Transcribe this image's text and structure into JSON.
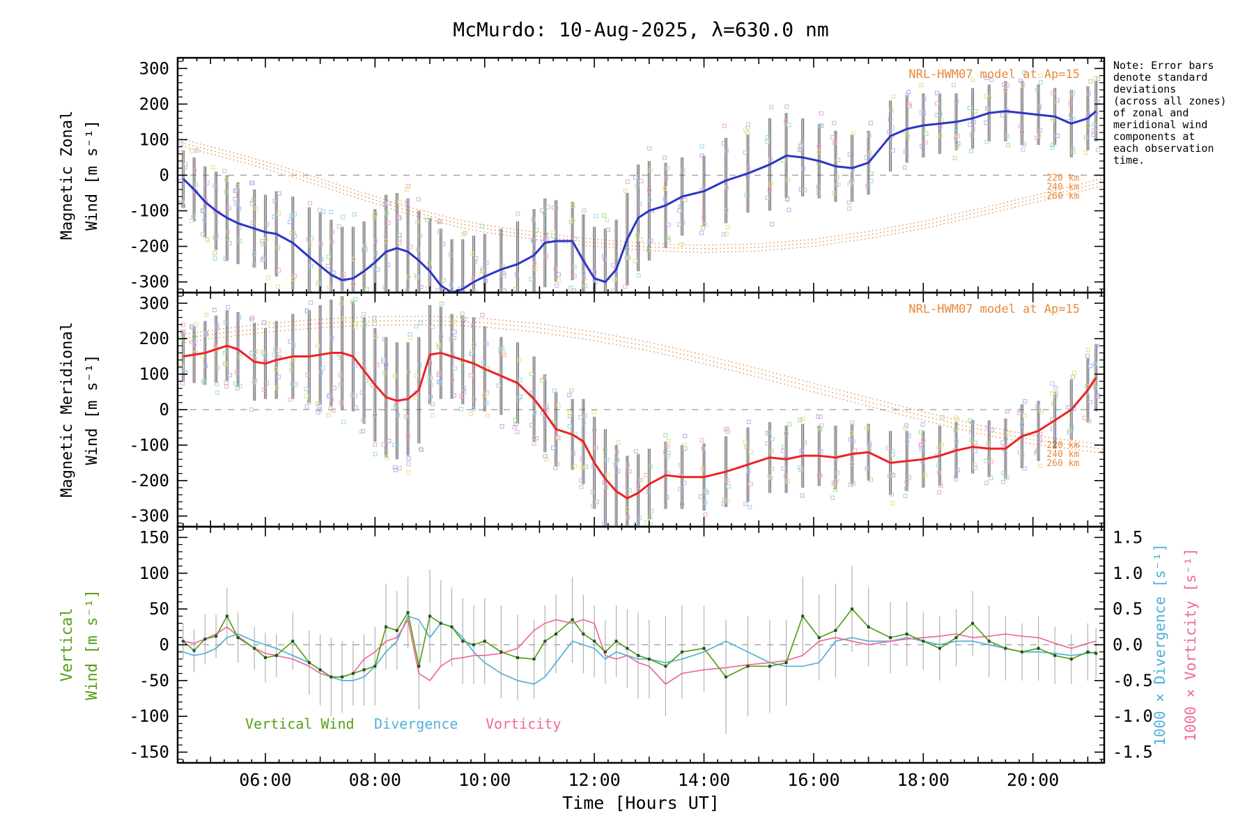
{
  "title": "McMurdo: 10-Aug-2025, λ=630.0 nm",
  "note": {
    "lines": [
      "Note: Error bars",
      "denote standard",
      "deviations",
      "(across all zones)",
      "of zonal and",
      "meridional wind",
      "components at",
      "each observation",
      "time."
    ]
  },
  "model_annotation": "NRL-HWM07 model at Ap=15",
  "altitude_labels": [
    "220 km",
    "240 km",
    "260 km"
  ],
  "legend": {
    "vertical_wind": "Vertical Wind",
    "divergence": "Divergence",
    "vorticity": "Vorticity"
  },
  "axes": {
    "x_label": "Time [Hours UT]",
    "x_tick_labels": [
      "06:00",
      "08:00",
      "10:00",
      "12:00",
      "14:00",
      "16:00",
      "18:00",
      "20:00"
    ],
    "x_tick_hours": [
      6,
      8,
      10,
      12,
      14,
      16,
      18,
      20
    ],
    "x_range_hours": [
      4.4,
      21.3
    ],
    "panel1_ylabel_line1": "Magnetic Zonal",
    "panel1_ylabel_line2": "Wind [m s⁻¹]",
    "panel2_ylabel_line1": "Magnetic Meridional",
    "panel2_ylabel_line2": "Wind [m s⁻¹]",
    "panel3_ylabel_line1": "Vertical",
    "panel3_ylabel_line2": "Wind [m s⁻¹]",
    "right_label_divergence": "1000 × Divergence [s⁻¹]",
    "right_label_vorticity": "1000 × Vorticity [s⁻¹]",
    "panel12_yticks": [
      -300,
      -200,
      -100,
      0,
      100,
      200,
      300
    ],
    "panel3_left_yticks": [
      -150,
      -100,
      -50,
      0,
      50,
      100,
      150
    ],
    "panel3_right_yticks": [
      -1.5,
      -1.0,
      -0.5,
      0.0,
      0.5,
      1.0,
      1.5
    ],
    "panel12_ylim": [
      -330,
      330
    ],
    "panel3_left_ylim": [
      -165,
      165
    ],
    "panel3_right_ylim": [
      -1.65,
      1.65
    ]
  },
  "colors": {
    "zonal_line": "#2a35c8",
    "meridional_line": "#ee2222",
    "model": "#e8883a",
    "vertical_wind": "#55a013",
    "divergence": "#52b0d8",
    "vorticity": "#f0699a",
    "zero_line": "#999999",
    "error_bar_gray": "#b0b0b0",
    "scatter_palette": [
      "#aab0e8",
      "#f2a8c4",
      "#e6de8a",
      "#9cd6e6",
      "#a8d898",
      "#c8b0e0"
    ]
  },
  "chart_data": [
    {
      "type": "line",
      "title": "Magnetic Zonal Wind",
      "ylabel": "Magnetic Zonal Wind [m s⁻¹]",
      "ylim": [
        -300,
        300
      ],
      "xlim_hours": [
        4.4,
        21.3
      ],
      "x_hours": [
        4.5,
        4.7,
        4.9,
        5.1,
        5.3,
        5.5,
        5.8,
        6.0,
        6.2,
        6.5,
        6.8,
        7.0,
        7.2,
        7.4,
        7.6,
        7.8,
        8.0,
        8.2,
        8.4,
        8.6,
        8.8,
        9.0,
        9.2,
        9.4,
        9.6,
        9.8,
        10.0,
        10.3,
        10.6,
        10.9,
        11.1,
        11.3,
        11.6,
        11.8,
        12.0,
        12.2,
        12.4,
        12.6,
        12.8,
        13.0,
        13.3,
        13.6,
        14.0,
        14.4,
        14.8,
        15.2,
        15.5,
        15.8,
        16.1,
        16.4,
        16.7,
        17.0,
        17.4,
        17.7,
        18.0,
        18.3,
        18.6,
        18.9,
        19.2,
        19.5,
        19.8,
        20.1,
        20.4,
        20.7,
        21.0,
        21.15
      ],
      "series": [
        {
          "name": "Observed zonal wind",
          "color_key": "zonal_line",
          "values": [
            -10,
            -40,
            -75,
            -100,
            -120,
            -135,
            -150,
            -160,
            -165,
            -190,
            -230,
            -255,
            -280,
            -295,
            -290,
            -270,
            -245,
            -215,
            -205,
            -215,
            -240,
            -270,
            -310,
            -330,
            -320,
            -300,
            -285,
            -265,
            -250,
            -225,
            -190,
            -185,
            -185,
            -240,
            -290,
            -300,
            -265,
            -180,
            -120,
            -100,
            -85,
            -60,
            -45,
            -15,
            5,
            30,
            55,
            50,
            40,
            25,
            20,
            35,
            110,
            130,
            140,
            145,
            150,
            160,
            175,
            180,
            175,
            170,
            165,
            145,
            160,
            180
          ],
          "stddev": [
            80,
            90,
            100,
            110,
            120,
            115,
            110,
            105,
            120,
            130,
            140,
            150,
            155,
            150,
            145,
            140,
            150,
            160,
            155,
            150,
            140,
            150,
            160,
            150,
            140,
            130,
            120,
            115,
            120,
            130,
            125,
            115,
            110,
            130,
            145,
            150,
            140,
            130,
            150,
            140,
            120,
            110,
            100,
            120,
            110,
            130,
            120,
            110,
            105,
            100,
            95,
            90,
            100,
            95,
            90,
            85,
            80,
            85,
            80,
            85,
            90,
            85,
            80,
            95,
            90,
            85
          ]
        },
        {
          "name": "NRL-HWM07 model at Ap=15",
          "color_key": "model",
          "altitudes_km": [
            220,
            240,
            260
          ],
          "altitude_offsets": [
            10,
            0,
            -10
          ],
          "x": [
            4.4,
            5,
            5.5,
            6,
            6.5,
            7,
            7.5,
            8,
            8.5,
            9,
            9.5,
            10,
            11,
            12,
            13,
            14,
            15,
            16,
            17,
            18,
            19,
            20,
            21,
            21.3
          ],
          "values": [
            95,
            70,
            50,
            28,
            5,
            -20,
            -45,
            -70,
            -95,
            -115,
            -135,
            -150,
            -172,
            -190,
            -202,
            -207,
            -203,
            -190,
            -168,
            -140,
            -105,
            -68,
            -30,
            -18
          ]
        }
      ]
    },
    {
      "type": "line",
      "title": "Magnetic Meridional Wind",
      "ylabel": "Magnetic Meridional Wind [m s⁻¹]",
      "ylim": [
        -300,
        300
      ],
      "xlim_hours": [
        4.4,
        21.3
      ],
      "x_hours": [
        4.5,
        4.7,
        4.9,
        5.1,
        5.3,
        5.5,
        5.8,
        6.0,
        6.2,
        6.5,
        6.8,
        7.0,
        7.2,
        7.4,
        7.6,
        7.8,
        8.0,
        8.2,
        8.4,
        8.6,
        8.8,
        9.0,
        9.2,
        9.4,
        9.6,
        9.8,
        10.0,
        10.3,
        10.6,
        10.9,
        11.1,
        11.3,
        11.6,
        11.8,
        12.0,
        12.2,
        12.4,
        12.6,
        12.8,
        13.0,
        13.3,
        13.6,
        14.0,
        14.4,
        14.8,
        15.2,
        15.5,
        15.8,
        16.1,
        16.4,
        16.7,
        17.0,
        17.4,
        17.7,
        18.0,
        18.3,
        18.6,
        18.9,
        19.2,
        19.5,
        19.8,
        20.1,
        20.4,
        20.7,
        21.0,
        21.15
      ],
      "series": [
        {
          "name": "Observed meridional wind",
          "color_key": "meridional_line",
          "values": [
            150,
            155,
            160,
            170,
            180,
            170,
            135,
            130,
            140,
            150,
            150,
            155,
            160,
            160,
            150,
            110,
            70,
            35,
            25,
            30,
            55,
            155,
            160,
            150,
            140,
            130,
            115,
            95,
            75,
            30,
            -10,
            -55,
            -70,
            -90,
            -150,
            -195,
            -230,
            -250,
            -235,
            -210,
            -185,
            -190,
            -190,
            -175,
            -155,
            -135,
            -140,
            -130,
            -130,
            -135,
            -125,
            -120,
            -150,
            -145,
            -140,
            -130,
            -115,
            -105,
            -110,
            -110,
            -75,
            -60,
            -30,
            0,
            55,
            90
          ],
          "stddev": [
            70,
            80,
            90,
            95,
            100,
            105,
            110,
            100,
            110,
            120,
            130,
            140,
            150,
            160,
            155,
            150,
            160,
            170,
            165,
            160,
            150,
            140,
            130,
            120,
            125,
            130,
            120,
            110,
            115,
            120,
            110,
            105,
            100,
            120,
            130,
            140,
            130,
            120,
            110,
            100,
            95,
            90,
            95,
            100,
            105,
            100,
            95,
            90,
            85,
            90,
            85,
            80,
            90,
            85,
            80,
            85,
            80,
            75,
            80,
            85,
            90,
            85,
            80,
            85,
            90,
            95
          ]
        },
        {
          "name": "NRL-HWM07 model at Ap=15",
          "color_key": "model",
          "altitudes_km": [
            220,
            240,
            260
          ],
          "altitude_offsets": [
            12,
            0,
            -12
          ],
          "x": [
            4.4,
            5,
            5.5,
            6,
            6.5,
            7,
            7.5,
            8,
            8.5,
            9,
            9.5,
            10,
            11,
            12,
            13,
            14,
            15,
            16,
            17,
            18,
            19,
            20,
            21,
            21.3
          ],
          "values": [
            198,
            212,
            221,
            230,
            237,
            243,
            247,
            250,
            251,
            251,
            249,
            245,
            230,
            207,
            178,
            142,
            103,
            62,
            22,
            -18,
            -55,
            -85,
            -105,
            -112
          ]
        }
      ]
    },
    {
      "type": "line",
      "title": "Vertical Wind, Divergence, Vorticity",
      "ylabel_left": "Vertical Wind [m s⁻¹]",
      "ylabel_right_divergence": "1000 × Divergence [s⁻¹]",
      "ylabel_right_vorticity": "1000 × Vorticity [s⁻¹]",
      "ylim_left": [
        -150,
        150
      ],
      "ylim_right": [
        -1.5,
        1.5
      ],
      "xlim_hours": [
        4.4,
        21.3
      ],
      "x_hours": [
        4.5,
        4.7,
        4.9,
        5.1,
        5.3,
        5.5,
        5.8,
        6.0,
        6.2,
        6.5,
        6.8,
        7.0,
        7.2,
        7.4,
        7.6,
        7.8,
        8.0,
        8.2,
        8.4,
        8.6,
        8.8,
        9.0,
        9.2,
        9.4,
        9.6,
        9.8,
        10.0,
        10.3,
        10.6,
        10.9,
        11.1,
        11.3,
        11.6,
        11.8,
        12.0,
        12.2,
        12.4,
        12.6,
        12.8,
        13.0,
        13.3,
        13.6,
        14.0,
        14.4,
        14.8,
        15.2,
        15.5,
        15.8,
        16.1,
        16.4,
        16.7,
        17.0,
        17.4,
        17.7,
        18.0,
        18.3,
        18.6,
        18.9,
        19.2,
        19.5,
        19.8,
        20.1,
        20.4,
        20.7,
        21.0,
        21.15
      ],
      "series": [
        {
          "name": "Vertical Wind",
          "axis": "left",
          "color_key": "vertical_wind",
          "values": [
            5,
            -8,
            8,
            12,
            40,
            10,
            -5,
            -18,
            -15,
            5,
            -25,
            -35,
            -45,
            -45,
            -40,
            -35,
            -30,
            25,
            20,
            45,
            -30,
            40,
            30,
            25,
            5,
            0,
            5,
            -10,
            -18,
            -20,
            5,
            15,
            35,
            15,
            5,
            -10,
            5,
            -5,
            -15,
            -20,
            -30,
            -10,
            -5,
            -45,
            -30,
            -30,
            -25,
            40,
            10,
            20,
            50,
            25,
            10,
            15,
            5,
            -5,
            10,
            30,
            5,
            -5,
            -10,
            -5,
            -15,
            -20,
            -10,
            -12
          ],
          "stddev": [
            25,
            30,
            35,
            30,
            40,
            35,
            30,
            35,
            30,
            40,
            45,
            50,
            55,
            50,
            45,
            50,
            55,
            60,
            55,
            50,
            60,
            65,
            60,
            55,
            60,
            55,
            60,
            65,
            60,
            55,
            50,
            55,
            60,
            55,
            50,
            45,
            50,
            55,
            60,
            55,
            70,
            65,
            60,
            80,
            70,
            65,
            60,
            55,
            60,
            65,
            60,
            55,
            50,
            45,
            40,
            45,
            40,
            45,
            50,
            45,
            40,
            45,
            40,
            35,
            40,
            35
          ]
        },
        {
          "name": "Divergence",
          "axis": "right",
          "color_key": "divergence",
          "values": [
            -0.1,
            -0.15,
            -0.12,
            -0.05,
            0.1,
            0.15,
            0.05,
            0.0,
            -0.05,
            -0.15,
            -0.25,
            -0.35,
            -0.45,
            -0.5,
            -0.5,
            -0.45,
            -0.3,
            -0.1,
            0.05,
            0.4,
            0.35,
            0.1,
            0.3,
            0.25,
            0.1,
            -0.1,
            -0.25,
            -0.4,
            -0.5,
            -0.55,
            -0.45,
            -0.25,
            0.05,
            0.0,
            -0.05,
            -0.2,
            -0.1,
            -0.15,
            -0.2,
            -0.2,
            -0.25,
            -0.2,
            -0.1,
            0.05,
            -0.1,
            -0.25,
            -0.3,
            -0.3,
            -0.25,
            0.05,
            0.1,
            0.05,
            0.05,
            0.1,
            0.05,
            0.0,
            0.05,
            0.05,
            0.0,
            -0.05,
            -0.1,
            -0.1,
            -0.12,
            -0.15,
            -0.12,
            -0.1
          ]
        },
        {
          "name": "Vorticity",
          "axis": "right",
          "color_key": "vorticity",
          "values": [
            0.05,
            0.02,
            0.08,
            0.15,
            0.25,
            0.12,
            -0.05,
            -0.12,
            -0.15,
            -0.2,
            -0.3,
            -0.4,
            -0.45,
            -0.45,
            -0.4,
            -0.2,
            -0.1,
            0.05,
            0.1,
            0.35,
            -0.4,
            -0.5,
            -0.3,
            -0.2,
            -0.18,
            -0.15,
            -0.15,
            -0.12,
            -0.05,
            0.2,
            0.3,
            0.35,
            0.3,
            0.35,
            0.3,
            -0.15,
            -0.2,
            -0.15,
            -0.25,
            -0.3,
            -0.55,
            -0.4,
            -0.35,
            -0.32,
            -0.28,
            -0.25,
            -0.22,
            -0.15,
            0.05,
            0.1,
            0.05,
            0.0,
            0.05,
            0.08,
            0.1,
            0.12,
            0.15,
            0.1,
            0.12,
            0.15,
            0.12,
            0.1,
            0.02,
            -0.05,
            0.02,
            0.05
          ]
        }
      ]
    }
  ]
}
